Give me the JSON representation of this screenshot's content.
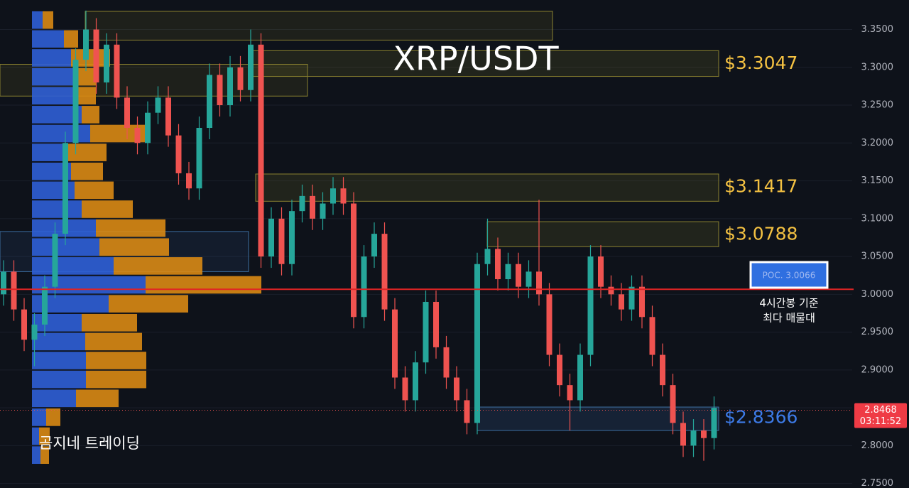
{
  "chart_data": {
    "type": "candlestick",
    "title": "XRP/USDT",
    "up_color": "#26a69a",
    "down_color": "#ef5350",
    "open": [
      3.0,
      3.03,
      2.98,
      2.94,
      2.96,
      3.01,
      3.08,
      3.2,
      3.31,
      3.35,
      3.28,
      3.33,
      3.26,
      3.22,
      3.2,
      3.24,
      3.26,
      3.21,
      3.16,
      3.14,
      3.22,
      3.29,
      3.25,
      3.3,
      3.27,
      3.33,
      3.05,
      3.1,
      3.04,
      3.11,
      3.13,
      3.1,
      3.12,
      3.14,
      3.12,
      2.97,
      3.05,
      3.08,
      2.98,
      2.89,
      2.86,
      2.91,
      2.99,
      2.93,
      2.89,
      2.86,
      2.83,
      3.04,
      3.06,
      3.02,
      3.04,
      3.01,
      3.03,
      3.0,
      2.92,
      2.88,
      2.86,
      2.92,
      3.05,
      3.01,
      3.0,
      2.98,
      3.01,
      2.97,
      2.92,
      2.88,
      2.83,
      2.8,
      2.82,
      2.81
    ],
    "high": [
      3.045,
      3.045,
      2.995,
      2.975,
      3.025,
      3.095,
      3.215,
      3.325,
      3.375,
      3.365,
      3.345,
      3.345,
      3.275,
      3.235,
      3.255,
      3.275,
      3.275,
      3.225,
      3.175,
      3.235,
      3.305,
      3.305,
      3.315,
      3.315,
      3.35,
      3.345,
      3.115,
      3.115,
      3.125,
      3.145,
      3.145,
      3.135,
      3.155,
      3.155,
      3.135,
      3.065,
      3.095,
      3.095,
      2.995,
      2.905,
      2.925,
      3.005,
      3.005,
      2.945,
      2.905,
      2.875,
      3.055,
      3.1,
      3.075,
      3.055,
      3.055,
      3.045,
      3.125,
      3.015,
      2.935,
      2.895,
      2.935,
      3.065,
      3.065,
      3.025,
      3.015,
      3.025,
      3.025,
      2.985,
      2.935,
      2.895,
      2.845,
      2.835,
      2.835,
      2.865
    ],
    "low": [
      2.985,
      2.965,
      2.925,
      2.905,
      2.945,
      2.995,
      3.065,
      3.185,
      3.295,
      3.265,
      3.265,
      3.245,
      3.205,
      3.185,
      3.185,
      3.225,
      3.195,
      3.145,
      3.125,
      3.125,
      3.205,
      3.235,
      3.235,
      3.255,
      3.255,
      3.035,
      3.035,
      3.025,
      3.025,
      3.095,
      3.085,
      3.085,
      3.105,
      3.105,
      2.955,
      2.955,
      3.035,
      2.965,
      2.875,
      2.845,
      2.845,
      2.895,
      2.915,
      2.875,
      2.845,
      2.815,
      2.815,
      3.025,
      3.005,
      3.005,
      2.995,
      2.995,
      2.985,
      2.905,
      2.865,
      2.82,
      2.845,
      2.905,
      2.995,
      2.985,
      2.965,
      2.965,
      2.955,
      2.905,
      2.865,
      2.815,
      2.785,
      2.785,
      2.78,
      2.795
    ],
    "close": [
      3.03,
      2.98,
      2.94,
      2.96,
      3.01,
      3.08,
      3.2,
      3.31,
      3.35,
      3.28,
      3.33,
      3.26,
      3.22,
      3.2,
      3.24,
      3.26,
      3.21,
      3.16,
      3.14,
      3.22,
      3.29,
      3.25,
      3.3,
      3.27,
      3.33,
      3.05,
      3.1,
      3.04,
      3.11,
      3.13,
      3.1,
      3.12,
      3.14,
      3.12,
      2.97,
      3.05,
      3.08,
      2.98,
      2.89,
      2.86,
      2.91,
      2.99,
      2.93,
      2.89,
      2.86,
      2.83,
      3.04,
      3.06,
      3.02,
      3.04,
      3.01,
      3.03,
      3.0,
      2.92,
      2.88,
      2.86,
      2.92,
      3.05,
      3.01,
      3.0,
      2.98,
      3.01,
      2.97,
      2.92,
      2.88,
      2.83,
      2.8,
      2.82,
      2.81,
      2.85
    ],
    "ylim": [
      2.744,
      3.389
    ],
    "yticks": [
      {
        "value": 3.35,
        "label": "3.3500"
      },
      {
        "value": 3.3,
        "label": "3.3000"
      },
      {
        "value": 3.25,
        "label": "3.2500"
      },
      {
        "value": 3.2,
        "label": "3.2000"
      },
      {
        "value": 3.15,
        "label": "3.1500"
      },
      {
        "value": 3.1,
        "label": "3.1000"
      },
      {
        "value": 3.05,
        "label": "3.0500"
      },
      {
        "value": 3.0,
        "label": "3.0000"
      },
      {
        "value": 2.95,
        "label": "2.9500"
      },
      {
        "value": 2.9,
        "label": "2.9000"
      },
      {
        "value": 2.85,
        "label": "2.8500"
      },
      {
        "value": 2.8,
        "label": "2.8000"
      },
      {
        "value": 2.75,
        "label": "2.7500"
      }
    ],
    "levels": [
      {
        "label": "$3.3047",
        "value": 3.3047,
        "top": 3.322,
        "bottom": 3.288,
        "color": "#f5c242"
      },
      {
        "label": "$3.1417",
        "value": 3.1417,
        "top": 3.159,
        "bottom": 3.123,
        "color": "#f5c242"
      },
      {
        "label": "$3.0788",
        "value": 3.0788,
        "top": 3.096,
        "bottom": 3.063,
        "color": "#f5c242"
      },
      {
        "label": "$2.8366",
        "value": 2.8366,
        "top": 2.851,
        "bottom": 2.82,
        "color": "#3d7be8"
      }
    ],
    "zones": [
      {
        "top": 3.374,
        "bottom": 3.336
      },
      {
        "top": 3.304,
        "bottom": 3.262
      },
      {
        "top": 3.083,
        "bottom": 3.03
      }
    ],
    "poc": {
      "label": "POC. 3.0066",
      "value": 3.0066,
      "color": "#e02424",
      "note": [
        "4시간봉 기준",
        "최다 매물대"
      ]
    },
    "last_price": {
      "value": 2.8468,
      "countdown": "03:11:52"
    },
    "volume_profile": {
      "buy_color": "#2f5fd6",
      "sell_color": "#d98a14",
      "levels": [
        3.3625,
        3.3375,
        3.3125,
        3.2875,
        3.2625,
        3.2375,
        3.2125,
        3.1875,
        3.1625,
        3.1375,
        3.1125,
        3.0875,
        3.0625,
        3.0375,
        3.0125,
        2.9875,
        2.9625,
        2.9375,
        2.9125,
        2.8875,
        2.8625,
        2.8375,
        2.8125,
        2.7875
      ],
      "buy": [
        15,
        45,
        55,
        60,
        65,
        70,
        82,
        50,
        55,
        60,
        70,
        90,
        95,
        115,
        160,
        108,
        70,
        75,
        76,
        76,
        62,
        20,
        10,
        12
      ],
      "sell": [
        15,
        20,
        55,
        30,
        25,
        25,
        85,
        55,
        45,
        55,
        72,
        98,
        98,
        125,
        163,
        112,
        78,
        80,
        85,
        85,
        60,
        20,
        15,
        12
      ]
    },
    "watermark": "곰지네 트레이딩"
  }
}
